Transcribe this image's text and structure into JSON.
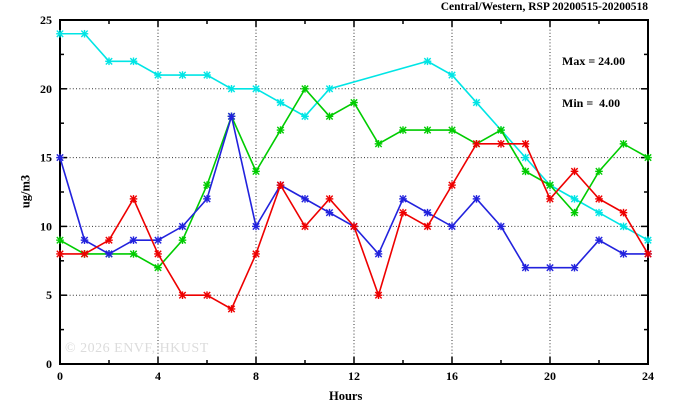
{
  "title": "Central/Western, RSP 20200515-20200518",
  "stats": {
    "max_label": "Max = 24.00",
    "min_label": "Min =  4.00"
  },
  "watermark": "© 2026 ENVF, HKUST",
  "chart_data": {
    "type": "line",
    "title": "Central/Western, RSP 20200515-20200518",
    "xlabel": "Hours",
    "ylabel": "ug/m3",
    "xlim": [
      0,
      24
    ],
    "ylim": [
      0,
      25
    ],
    "x_major_ticks": [
      0,
      4,
      8,
      12,
      16,
      20,
      24
    ],
    "x_minor_ticks": [
      2,
      6,
      10,
      14,
      18,
      22
    ],
    "y_major_ticks": [
      0,
      5,
      10,
      15,
      20,
      25
    ],
    "y_minor_ticks": [
      2.5,
      7.5,
      12.5,
      17.5,
      22.5
    ],
    "grid_x": [
      4,
      8,
      12,
      16,
      20
    ],
    "grid_y": [
      5,
      10,
      15,
      20
    ],
    "grid_on": true,
    "legend_position": "top-right-stats-only",
    "max": 24.0,
    "min": 4.0,
    "x": [
      0,
      1,
      2,
      3,
      4,
      5,
      6,
      7,
      8,
      9,
      10,
      11,
      12,
      13,
      14,
      15,
      16,
      17,
      18,
      19,
      20,
      21,
      22,
      23,
      24
    ],
    "series": [
      {
        "name": "cyan-line",
        "color": "#00E5E5",
        "values": [
          24,
          24,
          22,
          22,
          21,
          21,
          21,
          20,
          20,
          19,
          18,
          20,
          null,
          null,
          null,
          22,
          21,
          19,
          17,
          15,
          13,
          12,
          11,
          10,
          9
        ]
      },
      {
        "name": "green-line",
        "color": "#00CC00",
        "values": [
          9,
          8,
          8,
          8,
          7,
          9,
          13,
          18,
          14,
          17,
          20,
          18,
          19,
          16,
          17,
          17,
          17,
          16,
          17,
          14,
          13,
          11,
          14,
          16,
          15
        ]
      },
      {
        "name": "blue-line",
        "color": "#2222DD",
        "values": [
          15,
          9,
          8,
          9,
          9,
          10,
          12,
          18,
          10,
          13,
          12,
          11,
          10,
          8,
          12,
          11,
          10,
          12,
          10,
          7,
          7,
          7,
          9,
          8,
          8
        ]
      },
      {
        "name": "red-line",
        "color": "#EE0000",
        "values": [
          8,
          8,
          9,
          12,
          8,
          5,
          5,
          4,
          8,
          13,
          10,
          12,
          10,
          5,
          11,
          10,
          13,
          16,
          16,
          16,
          12,
          14,
          12,
          11,
          8
        ]
      }
    ]
  }
}
